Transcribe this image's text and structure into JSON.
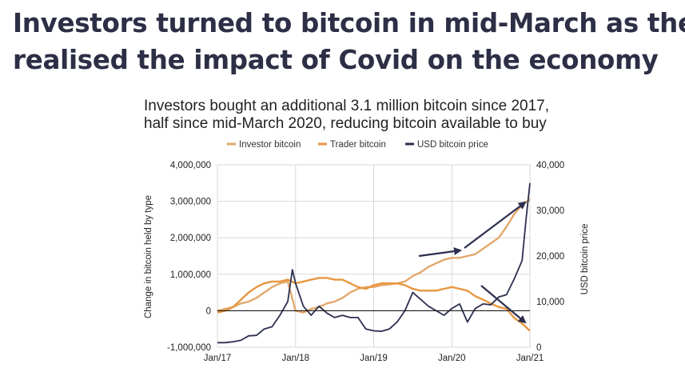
{
  "headline": {
    "line1": "Investors turned to bitcoin in mid-March as they",
    "line2": "realised the impact of Covid on the economy"
  },
  "chart_data": {
    "type": "line",
    "title_line1": "Investors bought an additional 3.1 million bitcoin since 2017,",
    "title_line2": "half since mid-March 2020, reducing bitcoin available to buy",
    "ylabel_left": "Change in bitcoin held by type",
    "ylabel_right": "USD bitcoin price",
    "ylim_left": [
      -1000000,
      4000000
    ],
    "ylim_right": [
      0,
      40000
    ],
    "xlim": [
      2017.0,
      2021.0
    ],
    "x_ticks": [
      {
        "value": 2017,
        "label": "Jan/17"
      },
      {
        "value": 2018,
        "label": "Jan/18"
      },
      {
        "value": 2019,
        "label": "Jan/19"
      },
      {
        "value": 2020,
        "label": "Jan/20"
      },
      {
        "value": 2021,
        "label": "Jan/21"
      }
    ],
    "y_ticks_left": [
      {
        "value": -1000000,
        "label": "-1,000,000"
      },
      {
        "value": 0,
        "label": "0"
      },
      {
        "value": 1000000,
        "label": "1,000,000"
      },
      {
        "value": 2000000,
        "label": "2,000,000"
      },
      {
        "value": 3000000,
        "label": "3,000,000"
      },
      {
        "value": 4000000,
        "label": "4,000,000"
      }
    ],
    "y_ticks_right": [
      {
        "value": 0,
        "label": "0"
      },
      {
        "value": 10000,
        "label": "10,000"
      },
      {
        "value": 20000,
        "label": "20,000"
      },
      {
        "value": 30000,
        "label": "30,000"
      },
      {
        "value": 40000,
        "label": "40,000"
      }
    ],
    "grid": true,
    "legend_position": "top",
    "series": [
      {
        "name": "Investor bitcoin",
        "axis": "left",
        "color": "#e3a86b",
        "x": [
          2017.0,
          2017.1,
          2017.2,
          2017.3,
          2017.4,
          2017.5,
          2017.6,
          2017.7,
          2017.8,
          2017.9,
          2018.0,
          2018.1,
          2018.2,
          2018.3,
          2018.4,
          2018.5,
          2018.6,
          2018.7,
          2018.8,
          2018.9,
          2019.0,
          2019.1,
          2019.2,
          2019.3,
          2019.4,
          2019.5,
          2019.6,
          2019.7,
          2019.8,
          2019.9,
          2020.0,
          2020.1,
          2020.2,
          2020.3,
          2020.4,
          2020.5,
          2020.6,
          2020.7,
          2020.8,
          2020.9,
          2021.0
        ],
        "values": [
          0,
          50000,
          100000,
          200000,
          250000,
          350000,
          500000,
          650000,
          750000,
          800000,
          0,
          -50000,
          50000,
          100000,
          200000,
          250000,
          350000,
          500000,
          600000,
          650000,
          650000,
          700000,
          720000,
          750000,
          800000,
          950000,
          1050000,
          1200000,
          1300000,
          1400000,
          1450000,
          1450000,
          1500000,
          1550000,
          1700000,
          1850000,
          2000000,
          2300000,
          2650000,
          2900000,
          3050000
        ]
      },
      {
        "name": "Trader bitcoin",
        "axis": "left",
        "color": "#e8963f",
        "x": [
          2017.0,
          2017.1,
          2017.2,
          2017.3,
          2017.4,
          2017.5,
          2017.6,
          2017.7,
          2017.8,
          2017.9,
          2018.0,
          2018.1,
          2018.2,
          2018.3,
          2018.4,
          2018.5,
          2018.6,
          2018.7,
          2018.8,
          2018.9,
          2019.0,
          2019.1,
          2019.2,
          2019.3,
          2019.4,
          2019.5,
          2019.6,
          2019.7,
          2019.8,
          2019.9,
          2020.0,
          2020.1,
          2020.2,
          2020.3,
          2020.4,
          2020.5,
          2020.6,
          2020.7,
          2020.8,
          2020.9,
          2021.0
        ],
        "values": [
          -50000,
          0,
          100000,
          300000,
          500000,
          650000,
          750000,
          800000,
          800000,
          850000,
          750000,
          800000,
          850000,
          900000,
          900000,
          850000,
          850000,
          750000,
          650000,
          600000,
          700000,
          750000,
          750000,
          750000,
          700000,
          600000,
          550000,
          550000,
          550000,
          600000,
          650000,
          600000,
          550000,
          400000,
          300000,
          200000,
          100000,
          50000,
          -200000,
          -350000,
          -550000
        ]
      },
      {
        "name": "USD bitcoin price",
        "axis": "right",
        "color": "#2c2f4f",
        "x": [
          2017.0,
          2017.1,
          2017.2,
          2017.3,
          2017.4,
          2017.5,
          2017.6,
          2017.7,
          2017.8,
          2017.9,
          2017.96,
          2018.0,
          2018.1,
          2018.2,
          2018.3,
          2018.4,
          2018.5,
          2018.6,
          2018.7,
          2018.8,
          2018.9,
          2019.0,
          2019.1,
          2019.2,
          2019.3,
          2019.4,
          2019.5,
          2019.6,
          2019.7,
          2019.8,
          2019.9,
          2020.0,
          2020.1,
          2020.2,
          2020.3,
          2020.4,
          2020.5,
          2020.6,
          2020.7,
          2020.8,
          2020.9,
          2020.95,
          2021.0
        ],
        "values": [
          1000,
          1000,
          1200,
          1500,
          2500,
          2600,
          4000,
          4500,
          7000,
          10000,
          17000,
          14000,
          9000,
          7000,
          9000,
          7500,
          6500,
          7000,
          6500,
          6500,
          4000,
          3600,
          3500,
          4000,
          5500,
          8000,
          12000,
          10500,
          9000,
          8000,
          7000,
          8500,
          9500,
          5500,
          8500,
          9500,
          9300,
          11000,
          11500,
          15000,
          19000,
          28000,
          36000
        ]
      }
    ]
  }
}
